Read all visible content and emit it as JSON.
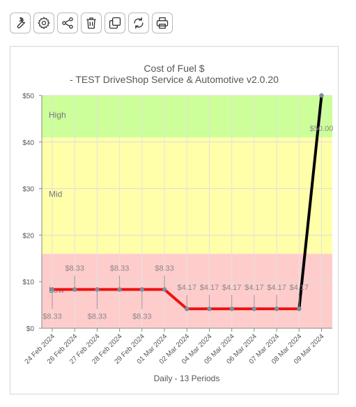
{
  "toolbar": {
    "buttons": [
      {
        "icon": "wrench-icon"
      },
      {
        "icon": "gear-icon"
      },
      {
        "icon": "share-icon"
      },
      {
        "icon": "trash-icon"
      },
      {
        "icon": "copy-icon"
      },
      {
        "icon": "refresh-icon"
      },
      {
        "icon": "print-icon"
      }
    ]
  },
  "chart_data": {
    "type": "line",
    "title": "Cost of Fuel $",
    "subtitle": "- TEST DriveShop Service & Automotive v2.0.20",
    "xlabel": "Daily - 13 Periods",
    "ylabel": "",
    "ylim": [
      0,
      50
    ],
    "yticks": [
      "$0",
      "$10",
      "$20",
      "$30",
      "$40",
      "$50"
    ],
    "categories": [
      "24 Feb 2024",
      "26 Feb 2024",
      "27 Feb 2024",
      "28 Feb 2024",
      "29 Feb 2024",
      "01 Mar 2024",
      "02 Mar 2024",
      "04 Mar 2024",
      "05 Mar 2024",
      "06 Mar 2024",
      "07 Mar 2024",
      "08 Mar 2024",
      "09 Mar 2024"
    ],
    "values": [
      8.33,
      8.33,
      8.33,
      8.33,
      8.33,
      8.33,
      4.17,
      4.17,
      4.17,
      4.17,
      4.17,
      4.17,
      50.0
    ],
    "data_labels": [
      "$8.33",
      "$8.33",
      "$8.33",
      "$8.33",
      "$8.33",
      "$8.33",
      "$4.17",
      "$4.17",
      "$4.17",
      "$4.17",
      "$4.17",
      "$4.17",
      "$50.00"
    ],
    "bands": [
      {
        "label": "Low",
        "from": 0,
        "to": 16,
        "color": "#ffcccc"
      },
      {
        "label": "Mid",
        "from": 16,
        "to": 41,
        "color": "#ffffaa"
      },
      {
        "label": "High",
        "from": 41,
        "to": 50,
        "color": "#ccff99"
      }
    ],
    "line_color_low": "#ee1111",
    "line_color_other": "#000000",
    "grid": true
  }
}
